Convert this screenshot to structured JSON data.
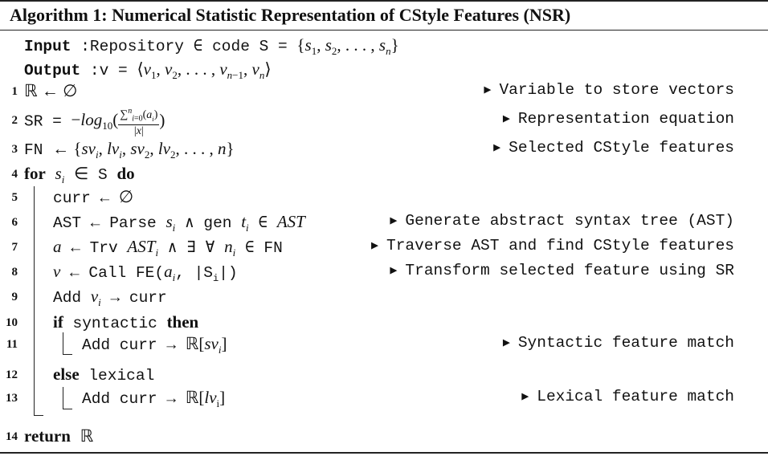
{
  "algorithm": {
    "title": "Algorithm 1: Numerical Statistic Representation of CStyle Features (NSR)",
    "input_label": "Input",
    "input_text": "Repository ∈ code S = {s1, s2, . . . , sn}",
    "output_label": "Output",
    "output_text": "v = ⟨v1, v2, . . . , vn−1, vn⟩",
    "lines": [
      {
        "num": "1",
        "text": "ℝ ← ∅",
        "comment": "Variable to store vectors"
      },
      {
        "num": "2",
        "text": "SR = −log10( Σn i=0 (ai) / |x| )",
        "comment": "Representation equation"
      },
      {
        "num": "3",
        "text": "FN ← {svi, lvi, sv2, lv2, . . . , n}",
        "comment": "Selected CStyle features"
      },
      {
        "num": "4",
        "text": "for si ∈ S do",
        "comment": ""
      },
      {
        "num": "5",
        "text": "curr ← ∅",
        "comment": ""
      },
      {
        "num": "6",
        "text": "AST ← Parse si ∧ gen ti ∈ AST",
        "comment": "Generate abstract syntax tree (AST)"
      },
      {
        "num": "7",
        "text": "a ← Trv ASTi ∧ ∃ ∀ ni ∈ FN",
        "comment": "Traverse AST and find CStyle features"
      },
      {
        "num": "8",
        "text": "v ← Call FE(ai, |Si|)",
        "comment": "Transform selected feature using SR"
      },
      {
        "num": "9",
        "text": "Add vi → curr",
        "comment": ""
      },
      {
        "num": "10",
        "text": "if syntactic then",
        "comment": ""
      },
      {
        "num": "11",
        "text": "Add curr → ℝ[svi]",
        "comment": "Syntactic feature match"
      },
      {
        "num": "12",
        "text": "else lexical",
        "comment": ""
      },
      {
        "num": "13",
        "text": "Add curr → ℝ[lvi]",
        "comment": "Lexical feature match"
      },
      {
        "num": "14",
        "text": "return ℝ",
        "comment": ""
      }
    ]
  }
}
